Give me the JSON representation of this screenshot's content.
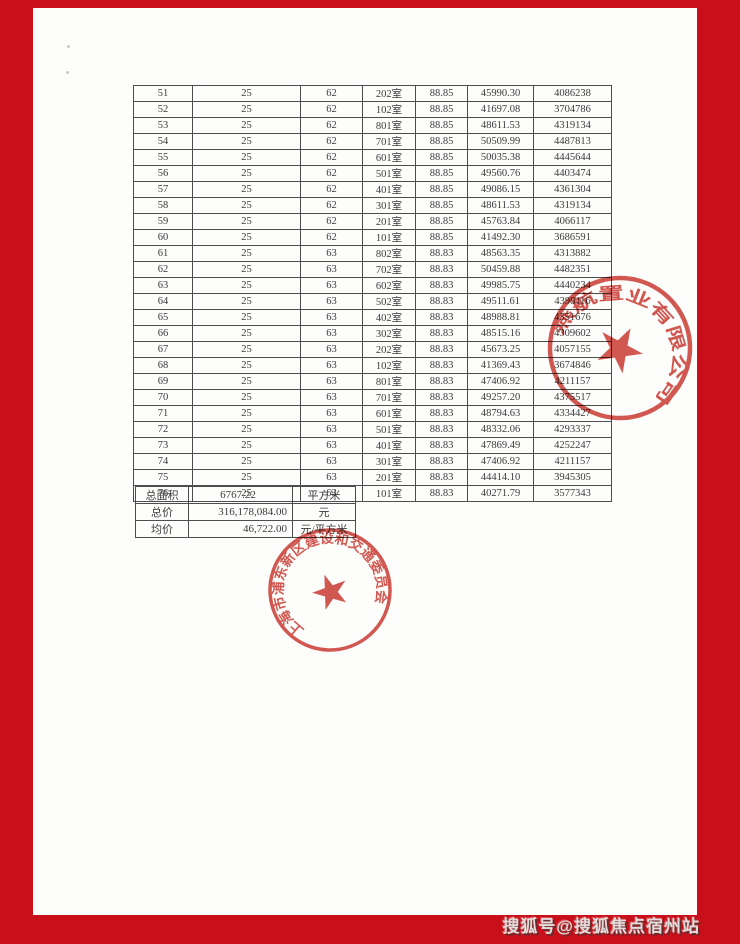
{
  "colors": {
    "frame_red": "#c9101a",
    "stamp_red": "#cc3b32",
    "table_ink": "#3b3b3b"
  },
  "watermark": {
    "text": "搜狐号@搜狐焦点宿州站"
  },
  "price_table": {
    "rows": [
      [
        "51",
        "25",
        "62",
        "202室",
        "88.85",
        "45990.30",
        "4086238"
      ],
      [
        "52",
        "25",
        "62",
        "102室",
        "88.85",
        "41697.08",
        "3704786"
      ],
      [
        "53",
        "25",
        "62",
        "801室",
        "88.85",
        "48611.53",
        "4319134"
      ],
      [
        "54",
        "25",
        "62",
        "701室",
        "88.85",
        "50509.99",
        "4487813"
      ],
      [
        "55",
        "25",
        "62",
        "601室",
        "88.85",
        "50035.38",
        "4445644"
      ],
      [
        "56",
        "25",
        "62",
        "501室",
        "88.85",
        "49560.76",
        "4403474"
      ],
      [
        "57",
        "25",
        "62",
        "401室",
        "88.85",
        "49086.15",
        "4361304"
      ],
      [
        "58",
        "25",
        "62",
        "301室",
        "88.85",
        "48611.53",
        "4319134"
      ],
      [
        "59",
        "25",
        "62",
        "201室",
        "88.85",
        "45763.84",
        "4066117"
      ],
      [
        "60",
        "25",
        "62",
        "101室",
        "88.85",
        "41492.30",
        "3686591"
      ],
      [
        "61",
        "25",
        "63",
        "802室",
        "88.83",
        "48563.35",
        "4313882"
      ],
      [
        "62",
        "25",
        "63",
        "702室",
        "88.83",
        "50459.88",
        "4482351"
      ],
      [
        "63",
        "25",
        "63",
        "602室",
        "88.83",
        "49985.75",
        "4440234"
      ],
      [
        "64",
        "25",
        "63",
        "502室",
        "88.83",
        "49511.61",
        "4398116"
      ],
      [
        "65",
        "25",
        "63",
        "402室",
        "88.83",
        "48988.81",
        "4351676"
      ],
      [
        "66",
        "25",
        "63",
        "302室",
        "88.83",
        "48515.16",
        "4309602"
      ],
      [
        "67",
        "25",
        "63",
        "202室",
        "88.83",
        "45673.25",
        "4057155"
      ],
      [
        "68",
        "25",
        "63",
        "102室",
        "88.83",
        "41369.43",
        "3674846"
      ],
      [
        "69",
        "25",
        "63",
        "801室",
        "88.83",
        "47406.92",
        "4211157"
      ],
      [
        "70",
        "25",
        "63",
        "701室",
        "88.83",
        "49257.20",
        "4375517"
      ],
      [
        "71",
        "25",
        "63",
        "601室",
        "88.83",
        "48794.63",
        "4334427"
      ],
      [
        "72",
        "25",
        "63",
        "501室",
        "88.83",
        "48332.06",
        "4293337"
      ],
      [
        "73",
        "25",
        "63",
        "401室",
        "88.83",
        "47869.49",
        "4252247"
      ],
      [
        "74",
        "25",
        "63",
        "301室",
        "88.83",
        "47406.92",
        "4211157"
      ],
      [
        "75",
        "25",
        "63",
        "201室",
        "88.83",
        "44414.10",
        "3945305"
      ],
      [
        "76",
        "25",
        "63",
        "101室",
        "88.83",
        "40271.79",
        "3577343"
      ]
    ]
  },
  "summary_table": {
    "rows": [
      {
        "label": "总面积",
        "value": "6767.22",
        "unit": "平方米",
        "align": "center"
      },
      {
        "label": "总价",
        "value": "316,178,084.00",
        "unit": "元",
        "align": "right"
      },
      {
        "label": "均价",
        "value": "46,722.00",
        "unit": "元/平方米",
        "align": "right"
      }
    ]
  },
  "stamps": {
    "company": {
      "arc_text": "燕航置业有限公司",
      "star_icon": "★"
    },
    "committee": {
      "arc_text": "上海市浦东新区建设和交通委员会",
      "star_icon": "★"
    }
  }
}
